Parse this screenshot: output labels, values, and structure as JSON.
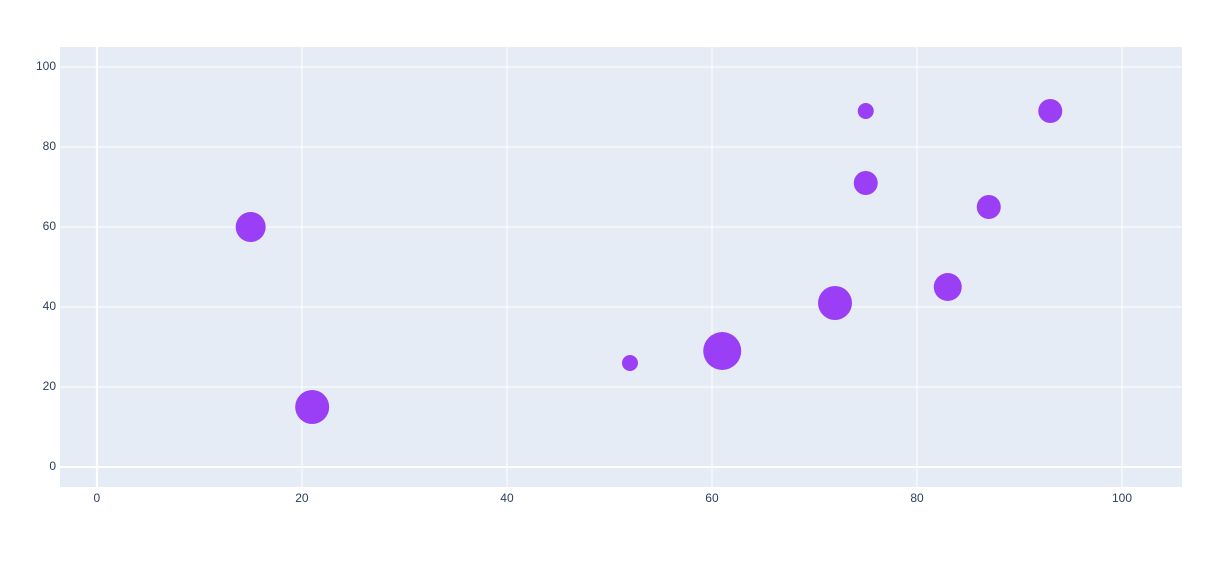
{
  "chart_data": {
    "type": "scatter",
    "x": [
      15,
      21,
      52,
      61,
      72,
      75,
      75,
      83,
      87,
      93
    ],
    "series": [
      {
        "color": "#9a3ff6",
        "values": [
          60,
          15,
          26,
          29,
          41,
          89,
          71,
          45,
          65,
          89
        ],
        "sizes": [
          30,
          34,
          16,
          38,
          34,
          16,
          24,
          28,
          24,
          24
        ]
      }
    ],
    "xlim": [
      -3.6,
      105.85
    ],
    "ylim": [
      -5,
      105
    ],
    "xticks": [
      0,
      20,
      40,
      60,
      80,
      100
    ],
    "yticks": [
      0,
      20,
      40,
      60,
      80,
      100
    ],
    "grid": true
  }
}
